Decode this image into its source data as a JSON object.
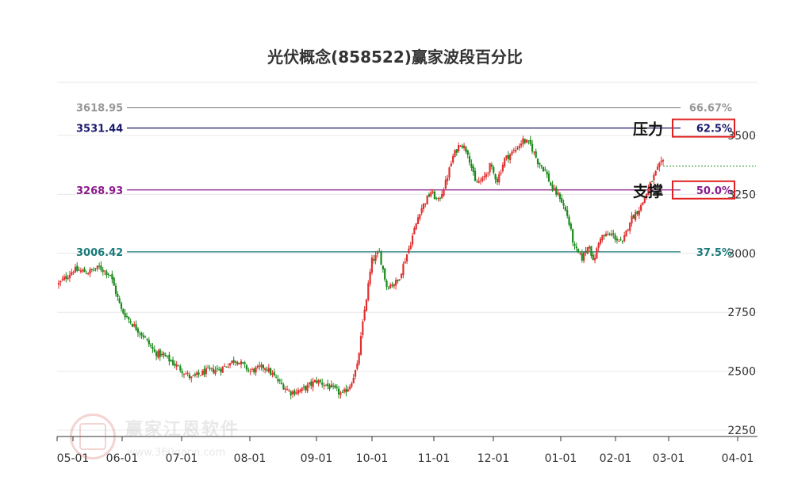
{
  "chart_data": {
    "type": "candlestick",
    "title": "光伏概念(858522)赢家波段百分比",
    "y_axis": {
      "ticks": [
        2250,
        2500,
        2750,
        3000,
        3250,
        3500
      ],
      "range": [
        2250,
        3620
      ],
      "position": "right"
    },
    "x_axis": {
      "ticks": [
        "05-01",
        "06-01",
        "07-01",
        "08-01",
        "09-01",
        "10-01",
        "11-01",
        "12-01",
        "01-01",
        "02-01",
        "03-01",
        "04-01"
      ]
    },
    "levels": [
      {
        "value": 3618.95,
        "label": "3618.95",
        "pct": "66.67%",
        "color": "#999999"
      },
      {
        "value": 3531.44,
        "label": "3531.44",
        "pct": "62.5%",
        "color": "#1a1a6e"
      },
      {
        "value": 3268.93,
        "label": "3268.93",
        "pct": "50.0%",
        "color": "#8b1a8b"
      },
      {
        "value": 3006.42,
        "label": "3006.42",
        "pct": "37.5%",
        "color": "#1a7a7a"
      }
    ],
    "annotations": {
      "resistance": "压力",
      "support": "支撑"
    },
    "current_price": 3370,
    "up_color": "#e03030",
    "down_color": "#1a8a1a",
    "keypoints": [
      [
        0,
        2870
      ],
      [
        8,
        2930
      ],
      [
        16,
        2920
      ],
      [
        22,
        2940
      ],
      [
        28,
        2910
      ],
      [
        34,
        2760
      ],
      [
        40,
        2700
      ],
      [
        46,
        2650
      ],
      [
        52,
        2580
      ],
      [
        58,
        2560
      ],
      [
        66,
        2510
      ],
      [
        72,
        2470
      ],
      [
        80,
        2500
      ],
      [
        88,
        2510
      ],
      [
        96,
        2550
      ],
      [
        104,
        2500
      ],
      [
        112,
        2520
      ],
      [
        120,
        2450
      ],
      [
        126,
        2410
      ],
      [
        132,
        2420
      ],
      [
        140,
        2460
      ],
      [
        148,
        2430
      ],
      [
        154,
        2400
      ],
      [
        158,
        2440
      ],
      [
        162,
        2520
      ],
      [
        166,
        2760
      ],
      [
        170,
        2970
      ],
      [
        174,
        3000
      ],
      [
        178,
        2860
      ],
      [
        184,
        2880
      ],
      [
        190,
        3020
      ],
      [
        196,
        3180
      ],
      [
        202,
        3260
      ],
      [
        206,
        3220
      ],
      [
        210,
        3300
      ],
      [
        214,
        3410
      ],
      [
        218,
        3470
      ],
      [
        222,
        3430
      ],
      [
        226,
        3300
      ],
      [
        230,
        3310
      ],
      [
        234,
        3370
      ],
      [
        238,
        3310
      ],
      [
        242,
        3400
      ],
      [
        248,
        3440
      ],
      [
        252,
        3480
      ],
      [
        256,
        3460
      ],
      [
        260,
        3390
      ],
      [
        264,
        3350
      ],
      [
        268,
        3270
      ],
      [
        272,
        3240
      ],
      [
        276,
        3160
      ],
      [
        280,
        3020
      ],
      [
        284,
        2980
      ],
      [
        288,
        3040
      ],
      [
        290,
        2960
      ],
      [
        294,
        3070
      ],
      [
        300,
        3080
      ],
      [
        306,
        3040
      ],
      [
        310,
        3140
      ],
      [
        316,
        3200
      ],
      [
        322,
        3310
      ],
      [
        326,
        3370
      ],
      [
        328,
        3390
      ]
    ]
  }
}
